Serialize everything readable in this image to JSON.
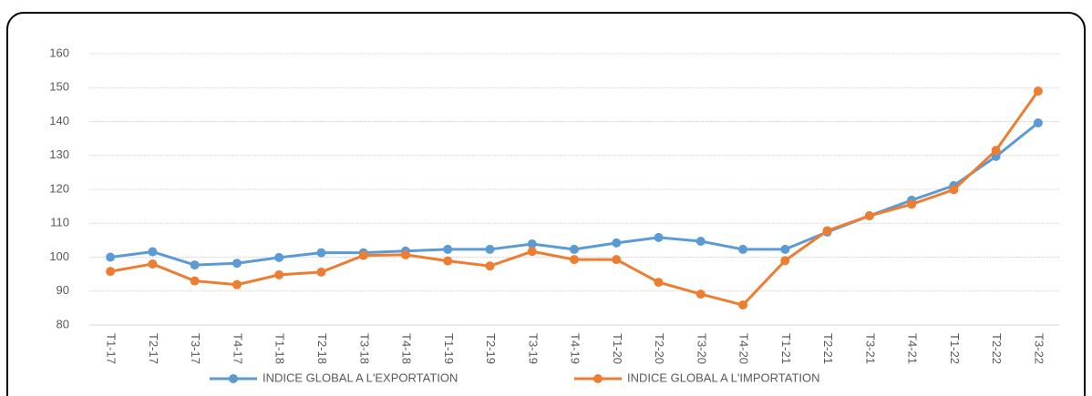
{
  "chart_data": {
    "type": "line",
    "categories": [
      "T1-17",
      "T2-17",
      "T3-17",
      "T4-17",
      "T1-18",
      "T2-18",
      "T3-18",
      "T4-18",
      "T1-19",
      "T2-19",
      "T3-19",
      "T4-19",
      "T1-20",
      "T2-20",
      "T3-20",
      "T4-20",
      "T1-21",
      "T2-21",
      "T3-21",
      "T4-21",
      "T1-22",
      "T2-22",
      "T3-22"
    ],
    "series": [
      {
        "name": "INDICE GLOBAL A L'EXPORTATION",
        "color": "#5b9bd5",
        "values": [
          100,
          101.6,
          97.7,
          98.2,
          99.9,
          101.3,
          101.3,
          101.8,
          102.3,
          102.3,
          103.9,
          102.3,
          104.2,
          105.8,
          104.7,
          102.3,
          102.3,
          107.4,
          112.2,
          116.8,
          121.1,
          129.7,
          139.6
        ]
      },
      {
        "name": "INDICE GLOBAL A L'IMPORTATION",
        "color": "#ed7d31",
        "values": [
          95.8,
          98,
          93,
          91.9,
          94.8,
          95.6,
          100.5,
          100.7,
          98.9,
          97.4,
          101.7,
          99.3,
          99.3,
          92.6,
          89.1,
          85.9,
          99,
          107.8,
          112.2,
          115.6,
          119.9,
          131.5,
          149
        ]
      }
    ],
    "ylim": [
      80,
      160
    ],
    "yticks": [
      80,
      90,
      100,
      110,
      120,
      130,
      140,
      150,
      160
    ],
    "grid": true
  }
}
